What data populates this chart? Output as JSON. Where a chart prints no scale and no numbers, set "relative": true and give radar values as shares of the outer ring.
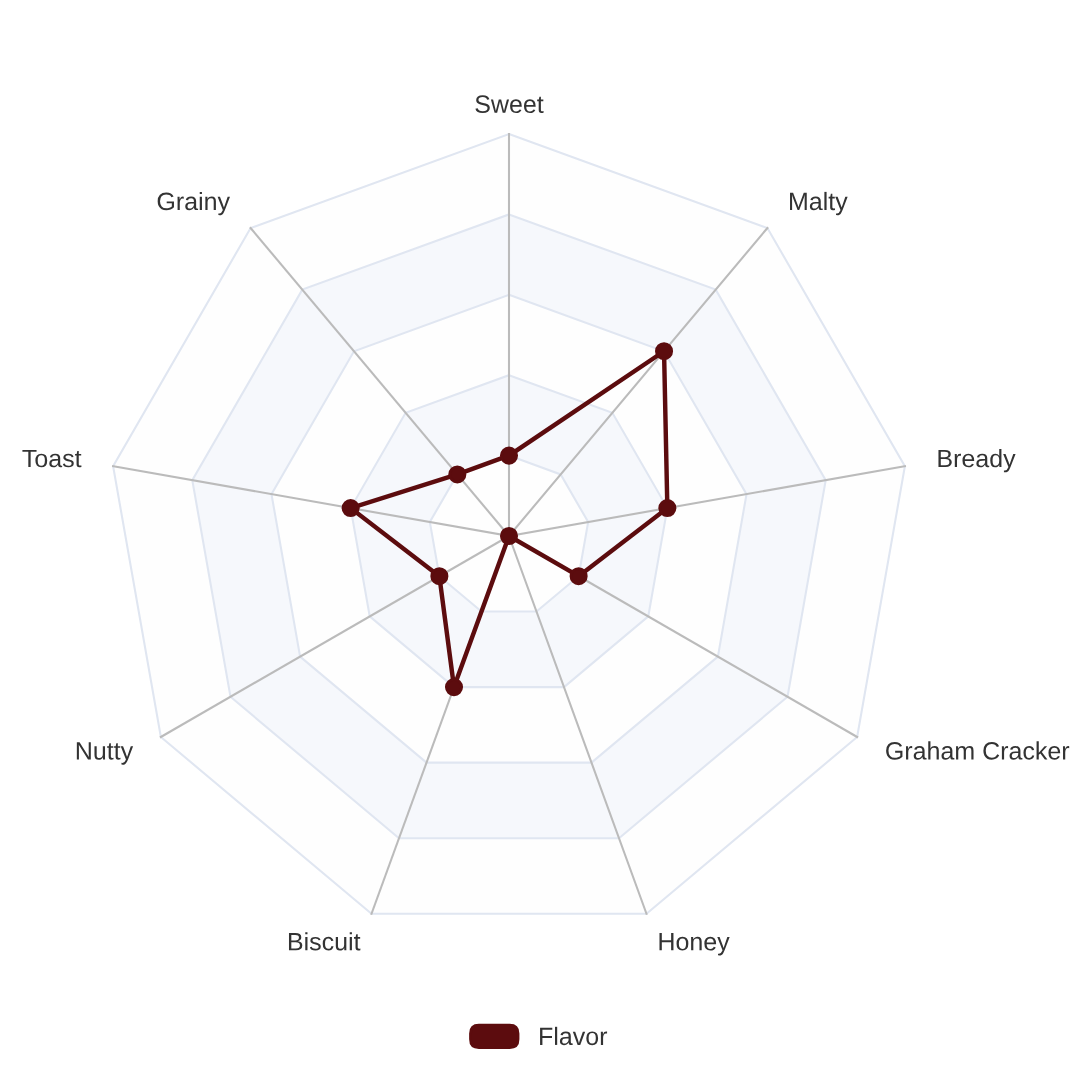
{
  "chart_data": {
    "type": "radar",
    "relative": true,
    "categories": [
      "Sweet",
      "Malty",
      "Bready",
      "Graham Cracker",
      "Honey",
      "Biscuit",
      "Nutty",
      "Toast",
      "Grainy"
    ],
    "series": [
      {
        "name": "Flavor",
        "color": "#5c0c0e",
        "values": [
          0.2,
          0.6,
          0.4,
          0.2,
          0,
          0.4,
          0.2,
          0.4,
          0.2
        ]
      }
    ],
    "grid": true,
    "legend": "bottom",
    "marker": "circle",
    "line_style": "solid"
  }
}
